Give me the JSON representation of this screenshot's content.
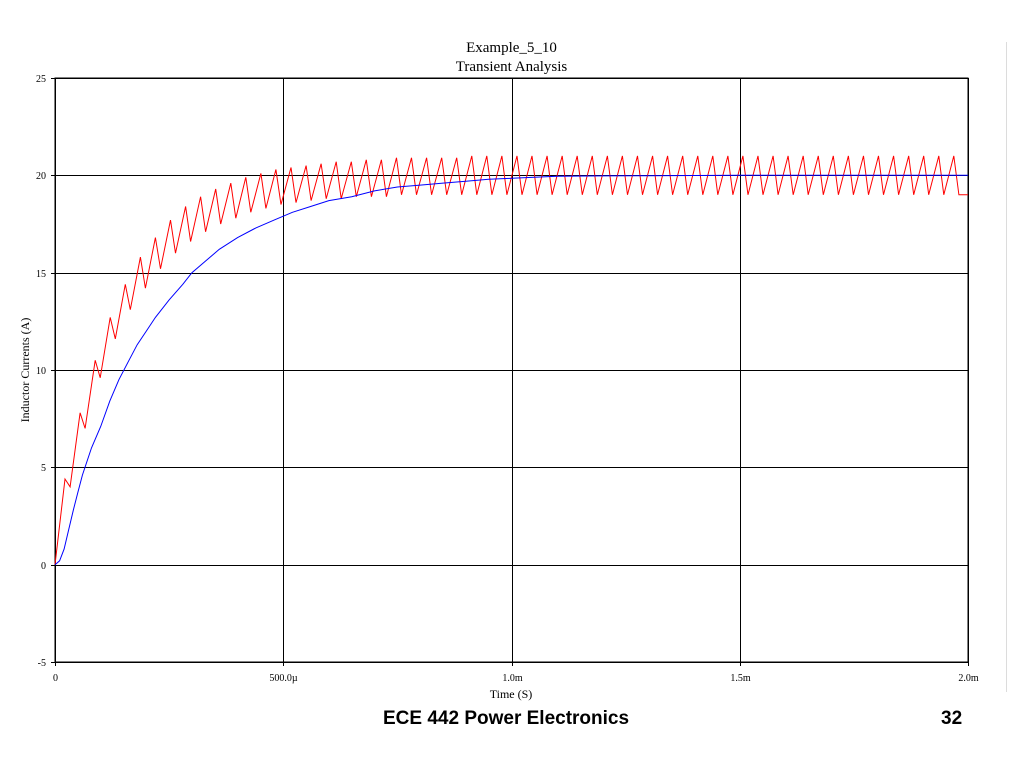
{
  "slide": {
    "footer_course": "ECE 442 Power Electronics",
    "footer_page": "32"
  },
  "chart_data": {
    "type": "line",
    "title": "Example_5_10",
    "subtitle": "Transient Analysis",
    "xlabel": "Time (S)",
    "ylabel": "Inductor Currents (A)",
    "xlim": [
      0,
      0.002
    ],
    "ylim": [
      -5,
      25
    ],
    "x_ticks": [
      {
        "value": 0,
        "label": "0"
      },
      {
        "value": 0.0005,
        "label": "500.0µ"
      },
      {
        "value": 0.001,
        "label": "1.0m"
      },
      {
        "value": 0.0015,
        "label": "1.5m"
      },
      {
        "value": 0.002,
        "label": "2.0m"
      }
    ],
    "y_ticks": [
      {
        "value": -5,
        "label": "-5"
      },
      {
        "value": 0,
        "label": "0"
      },
      {
        "value": 5,
        "label": "5"
      },
      {
        "value": 10,
        "label": "10"
      },
      {
        "value": 15,
        "label": "15"
      },
      {
        "value": 20,
        "label": "20"
      },
      {
        "value": 25,
        "label": "25"
      }
    ],
    "grid": true,
    "series": [
      {
        "color": "#ff0000",
        "x": [
          0,
          2.2e-05,
          3.3e-05,
          5.5e-05,
          6.6e-05,
          8.8e-05,
          9.9e-05,
          0.000121,
          0.000132,
          0.000154,
          0.000165,
          0.000187,
          0.000198,
          0.00022,
          0.000231,
          0.000253,
          0.000264,
          0.000286,
          0.000297,
          0.000319,
          0.00033,
          0.000352,
          0.000363,
          0.000385,
          0.000396,
          0.000418,
          0.000429,
          0.000451,
          0.000462,
          0.000484,
          0.000495,
          0.000517,
          0.000528,
          0.00055,
          0.000561,
          0.000583,
          0.000594,
          0.000616,
          0.000627,
          0.000649,
          0.00066,
          0.000682,
          0.000693,
          0.000715,
          0.000726,
          0.000748,
          0.000759,
          0.000781,
          0.000792,
          0.000814,
          0.000825,
          0.000847,
          0.000858,
          0.00088,
          0.000891,
          0.000913,
          0.000924,
          0.000946,
          0.000957,
          0.000979,
          0.00099,
          0.001012,
          0.001023,
          0.001045,
          0.001056,
          0.001078,
          0.001089,
          0.001111,
          0.001122,
          0.001144,
          0.001155,
          0.001177,
          0.001188,
          0.00121,
          0.001221,
          0.001243,
          0.001254,
          0.001276,
          0.001287,
          0.001309,
          0.00132,
          0.001342,
          0.001353,
          0.001375,
          0.001386,
          0.001408,
          0.001419,
          0.001441,
          0.001452,
          0.001474,
          0.001485,
          0.001507,
          0.001518,
          0.00154,
          0.001551,
          0.001573,
          0.001584,
          0.001606,
          0.001617,
          0.001639,
          0.00165,
          0.001672,
          0.001683,
          0.001705,
          0.001716,
          0.001738,
          0.001749,
          0.001771,
          0.001782,
          0.001804,
          0.001815,
          0.001837,
          0.001848,
          0.00187,
          0.001881,
          0.001903,
          0.001914,
          0.001936,
          0.001947,
          0.001969,
          0.00198,
          0.002
        ],
        "values": [
          0,
          4.4,
          4.0,
          7.8,
          7.0,
          10.5,
          9.6,
          12.7,
          11.6,
          14.4,
          13.1,
          15.8,
          14.2,
          16.8,
          15.2,
          17.7,
          16.0,
          18.4,
          16.6,
          18.9,
          17.1,
          19.3,
          17.5,
          19.6,
          17.8,
          19.9,
          18.1,
          20.1,
          18.3,
          20.3,
          18.5,
          20.4,
          18.6,
          20.5,
          18.7,
          20.6,
          18.8,
          20.7,
          18.8,
          20.7,
          18.9,
          20.8,
          18.9,
          20.8,
          18.9,
          20.9,
          19.0,
          20.9,
          19.0,
          20.9,
          19.0,
          20.9,
          19.0,
          20.9,
          19.0,
          21.0,
          19.0,
          21.0,
          19.0,
          21.0,
          19.0,
          21.0,
          19.0,
          21.0,
          19.0,
          21.0,
          19.0,
          21.0,
          19.0,
          21.0,
          19.0,
          21.0,
          19.0,
          21.0,
          19.0,
          21.0,
          19.0,
          21.0,
          19.0,
          21.0,
          19.0,
          21.0,
          19.0,
          21.0,
          19.0,
          21.0,
          19.0,
          21.0,
          19.0,
          21.0,
          19.0,
          21.0,
          19.0,
          21.0,
          19.0,
          21.0,
          19.0,
          21.0,
          19.0,
          21.0,
          19.0,
          21.0,
          19.0,
          21.0,
          19.0,
          21.0,
          19.0,
          21.0,
          19.0,
          21.0,
          19.0,
          21.0,
          19.0,
          21.0,
          19.0,
          21.0,
          19.0,
          21.0,
          19.0,
          21.0,
          19.0,
          19.0
        ]
      },
      {
        "color": "#0000ff",
        "x": [
          0,
          1e-05,
          2e-05,
          3e-05,
          4e-05,
          5e-05,
          6e-05,
          8e-05,
          0.0001,
          0.00012,
          0.00014,
          0.00016,
          0.00018,
          0.0002,
          0.00022,
          0.00025,
          0.00028,
          0.0003,
          0.00033,
          0.00036,
          0.0004,
          0.00044,
          0.00048,
          0.00052,
          0.00056,
          0.0006,
          0.00065,
          0.0007,
          0.00075,
          0.0008,
          0.00085,
          0.0009,
          0.00095,
          0.001,
          0.00105,
          0.0011,
          0.0012,
          0.0013,
          0.0014,
          0.0015,
          0.0016,
          0.0017,
          0.0018,
          0.0019,
          0.002
        ],
        "values": [
          0,
          0.2,
          0.8,
          1.8,
          2.8,
          3.7,
          4.6,
          6.0,
          7.1,
          8.4,
          9.5,
          10.4,
          11.3,
          12.0,
          12.7,
          13.6,
          14.4,
          15.0,
          15.6,
          16.2,
          16.8,
          17.3,
          17.7,
          18.1,
          18.4,
          18.7,
          18.9,
          19.2,
          19.4,
          19.5,
          19.6,
          19.7,
          19.8,
          19.85,
          19.9,
          19.95,
          19.97,
          19.98,
          19.99,
          20.0,
          20.0,
          20.0,
          20.0,
          20.0,
          20.0
        ]
      }
    ],
    "colors": {
      "background": "#ffffff",
      "axes": "#000000",
      "grid": "#000000"
    }
  }
}
